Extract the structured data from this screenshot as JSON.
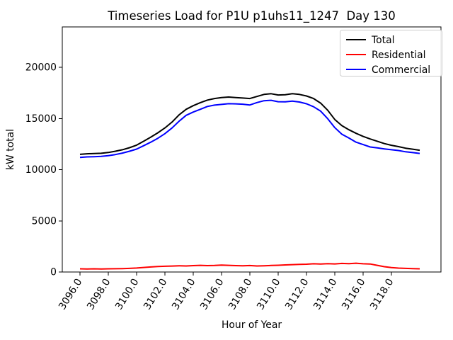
{
  "background_color": "#ffffff",
  "chart_data": {
    "type": "line",
    "title": "Timeseries Load for P1U p1uhs11_1247  Day 130",
    "xlabel": "Hour of Year",
    "ylabel": "kW total",
    "grid": false,
    "xlim": [
      3094.75,
      3121.5
    ],
    "ylim": [
      0,
      23950
    ],
    "xticks": {
      "values": [
        3096,
        3098,
        3100,
        3102,
        3104,
        3106,
        3108,
        3110,
        3112,
        3114,
        3116,
        3118
      ],
      "labels": [
        "3096.0",
        "3098.0",
        "3100.0",
        "3102.0",
        "3104.0",
        "3106.0",
        "3108.0",
        "3110.0",
        "3112.0",
        "3114.0",
        "3116.0",
        "3118.0"
      ],
      "rotation_deg": 58
    },
    "yticks": {
      "values": [
        0,
        5000,
        10000,
        15000,
        20000
      ],
      "labels": [
        "0",
        "5000",
        "10000",
        "15000",
        "20000"
      ]
    },
    "legend": {
      "position": "upper right",
      "entries": [
        "Total",
        "Residential",
        "Commercial"
      ]
    },
    "x": [
      3096.0,
      3096.5,
      3097.0,
      3097.5,
      3098.0,
      3098.5,
      3099.0,
      3099.5,
      3100.0,
      3100.5,
      3101.0,
      3101.5,
      3102.0,
      3102.5,
      3103.0,
      3103.5,
      3104.0,
      3104.5,
      3105.0,
      3105.5,
      3106.0,
      3106.5,
      3107.0,
      3107.5,
      3108.0,
      3108.5,
      3109.0,
      3109.5,
      3110.0,
      3110.5,
      3111.0,
      3111.5,
      3112.0,
      3112.5,
      3113.0,
      3113.5,
      3114.0,
      3114.5,
      3115.0,
      3115.5,
      3116.0,
      3116.5,
      3117.0,
      3117.5,
      3118.0,
      3118.5,
      3119.0,
      3119.5,
      3120.0
    ],
    "series": [
      {
        "name": "Total",
        "color": "#000000",
        "values": [
          11500,
          11550,
          11580,
          11600,
          11680,
          11800,
          11950,
          12150,
          12400,
          12780,
          13180,
          13600,
          14080,
          14650,
          15350,
          15900,
          16250,
          16550,
          16800,
          16950,
          17050,
          17100,
          17050,
          17000,
          16950,
          17150,
          17350,
          17420,
          17300,
          17320,
          17420,
          17350,
          17200,
          16950,
          16500,
          15800,
          14900,
          14300,
          13900,
          13550,
          13250,
          13000,
          12780,
          12550,
          12380,
          12250,
          12100,
          12000,
          11900
        ]
      },
      {
        "name": "Residential",
        "color": "#ff0000",
        "values": [
          310,
          300,
          310,
          300,
          310,
          320,
          330,
          350,
          390,
          440,
          490,
          530,
          560,
          580,
          610,
          590,
          620,
          650,
          620,
          640,
          670,
          650,
          620,
          600,
          630,
          590,
          610,
          640,
          660,
          690,
          720,
          740,
          760,
          800,
          780,
          820,
          790,
          840,
          810,
          860,
          800,
          780,
          650,
          520,
          430,
          380,
          350,
          330,
          310
        ]
      },
      {
        "name": "Commercial",
        "color": "#0000ff",
        "values": [
          11190,
          11250,
          11270,
          11300,
          11370,
          11480,
          11620,
          11800,
          12010,
          12340,
          12690,
          13070,
          13520,
          14070,
          14740,
          15310,
          15630,
          15900,
          16180,
          16310,
          16380,
          16450,
          16430,
          16400,
          16320,
          16560,
          16740,
          16780,
          16640,
          16630,
          16700,
          16610,
          16440,
          16150,
          15720,
          14980,
          14110,
          13460,
          13090,
          12690,
          12450,
          12220,
          12130,
          12030,
          11950,
          11870,
          11750,
          11670,
          11590
        ]
      }
    ]
  }
}
